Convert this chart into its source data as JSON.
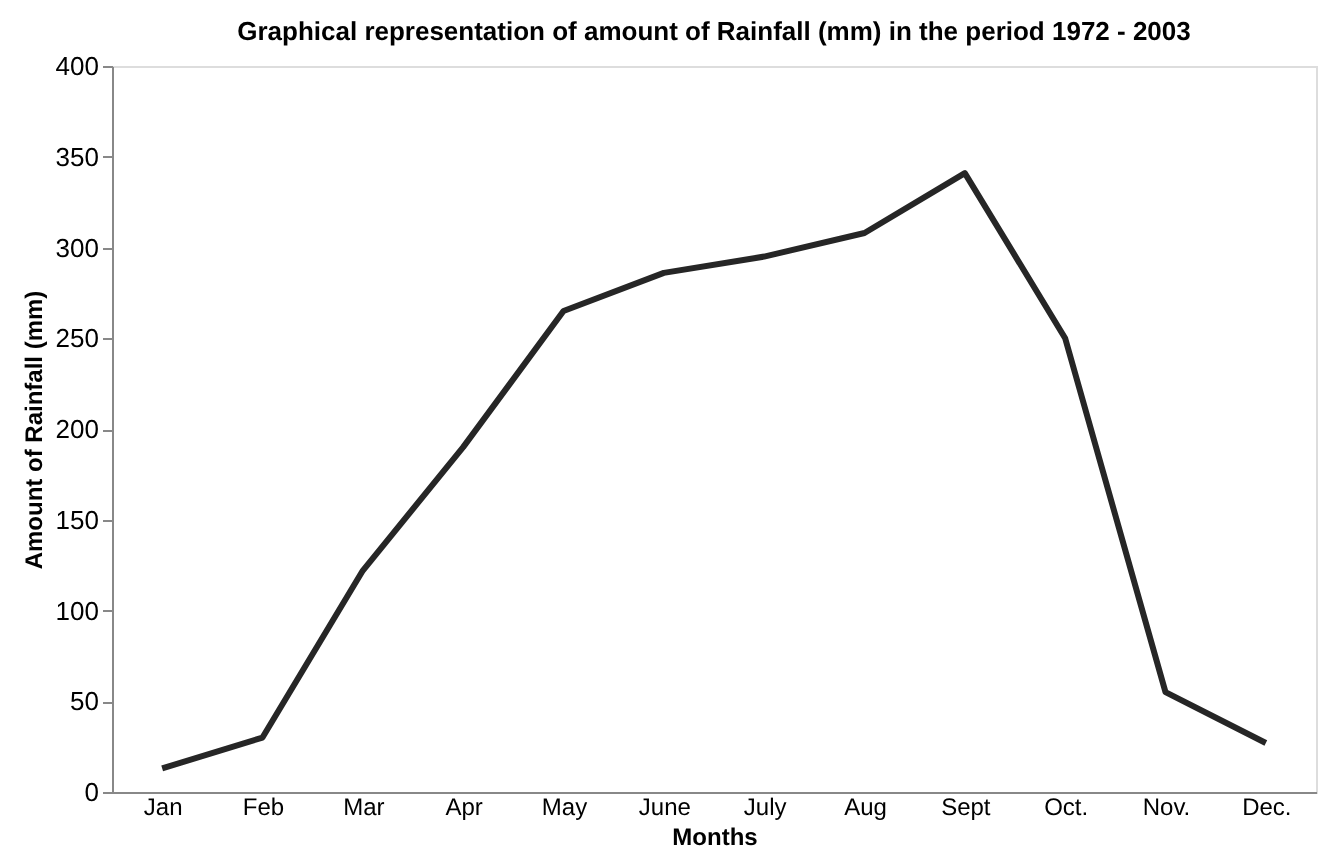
{
  "chart_data": {
    "type": "line",
    "title": "Graphical representation of amount of Rainfall (mm)  in the period 1972  - 2003",
    "xlabel": "Months",
    "ylabel": "Amount of Rainfall  (mm)",
    "categories": [
      "Jan",
      "Feb",
      "Mar",
      "Apr",
      "May",
      "June",
      "July",
      "Aug",
      "Sept",
      "Oct.",
      "Nov.",
      "Dec."
    ],
    "series": [
      {
        "color": "#262626",
        "values": [
          13,
          30,
          122,
          190,
          265,
          286,
          295,
          308,
          341,
          250,
          55,
          27
        ]
      }
    ],
    "ylim": [
      0,
      400
    ],
    "yticks": [
      0,
      50,
      100,
      150,
      200,
      250,
      300,
      350,
      400
    ],
    "grid": false,
    "marker": "none",
    "line_style": "solid"
  }
}
